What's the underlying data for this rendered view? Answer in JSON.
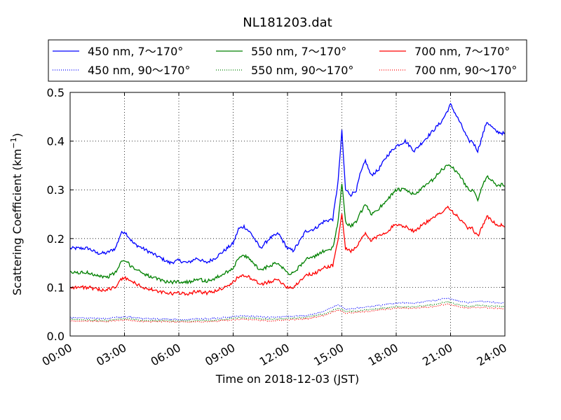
{
  "chart_data": {
    "type": "line",
    "title": "NL181203.dat",
    "xlabel": "Time on 2018-12-03 (JST)",
    "ylabel": "Scattering Coefficient (km",
    "ylabel_sup": "−1",
    "ylabel_close": ")",
    "xlim": [
      "00:00",
      "24:00"
    ],
    "xlim_hours": [
      0,
      24
    ],
    "ylim": [
      0,
      0.5
    ],
    "xticks": [
      "00:00",
      "03:00",
      "06:00",
      "09:00",
      "12:00",
      "15:00",
      "18:00",
      "21:00",
      "24:00"
    ],
    "yticks": [
      "0.0",
      "0.1",
      "0.2",
      "0.3",
      "0.4",
      "0.5"
    ],
    "grid": true,
    "legend_position": "top",
    "series": [
      {
        "name": "450 nm, 7～170°",
        "color": "#0000ff",
        "style": "solid",
        "x_hours": [
          0,
          1,
          1.5,
          2,
          2.5,
          2.8,
          3,
          3.5,
          4,
          4.5,
          5,
          5.5,
          6,
          6.5,
          7,
          7.5,
          8,
          8.5,
          9,
          9.3,
          9.6,
          10,
          10.5,
          11,
          11.5,
          12,
          12.3,
          12.6,
          13,
          13.5,
          14,
          14.5,
          14.8,
          15.0,
          15.2,
          15.5,
          15.8,
          16.0,
          16.3,
          16.6,
          17,
          17.5,
          18,
          18.5,
          19,
          19.5,
          20,
          20.5,
          20.8,
          21,
          21.5,
          22,
          22.2,
          22.5,
          23,
          23.5,
          24
        ],
        "values": [
          0.18,
          0.18,
          0.17,
          0.17,
          0.18,
          0.21,
          0.215,
          0.19,
          0.18,
          0.17,
          0.16,
          0.15,
          0.155,
          0.15,
          0.16,
          0.15,
          0.16,
          0.175,
          0.19,
          0.22,
          0.225,
          0.21,
          0.18,
          0.2,
          0.21,
          0.18,
          0.175,
          0.19,
          0.215,
          0.22,
          0.235,
          0.24,
          0.32,
          0.42,
          0.3,
          0.29,
          0.3,
          0.33,
          0.36,
          0.33,
          0.34,
          0.37,
          0.39,
          0.4,
          0.38,
          0.4,
          0.42,
          0.44,
          0.46,
          0.475,
          0.44,
          0.4,
          0.4,
          0.38,
          0.44,
          0.42,
          0.415
        ]
      },
      {
        "name": "550 nm, 7～170°",
        "color": "#008000",
        "style": "solid",
        "x_hours": [
          0,
          1,
          1.5,
          2,
          2.5,
          2.8,
          3,
          3.5,
          4,
          4.5,
          5,
          5.5,
          6,
          6.5,
          7,
          7.5,
          8,
          8.5,
          9,
          9.3,
          9.6,
          10,
          10.5,
          11,
          11.5,
          12,
          12.3,
          12.6,
          13,
          13.5,
          14,
          14.5,
          14.8,
          15.0,
          15.2,
          15.5,
          15.8,
          16.0,
          16.3,
          16.6,
          17,
          17.5,
          18,
          18.5,
          19,
          19.5,
          20,
          20.5,
          20.8,
          21,
          21.5,
          22,
          22.2,
          22.5,
          23,
          23.5,
          24
        ],
        "values": [
          0.13,
          0.13,
          0.125,
          0.12,
          0.13,
          0.15,
          0.155,
          0.14,
          0.13,
          0.12,
          0.115,
          0.11,
          0.112,
          0.11,
          0.118,
          0.112,
          0.118,
          0.128,
          0.14,
          0.16,
          0.165,
          0.155,
          0.135,
          0.145,
          0.15,
          0.13,
          0.128,
          0.14,
          0.158,
          0.162,
          0.175,
          0.18,
          0.235,
          0.315,
          0.235,
          0.225,
          0.235,
          0.25,
          0.27,
          0.25,
          0.26,
          0.28,
          0.3,
          0.3,
          0.29,
          0.305,
          0.32,
          0.34,
          0.35,
          0.35,
          0.33,
          0.3,
          0.3,
          0.28,
          0.33,
          0.31,
          0.31
        ]
      },
      {
        "name": "700 nm, 7～170°",
        "color": "#ff0000",
        "style": "solid",
        "x_hours": [
          0,
          1,
          1.5,
          2,
          2.5,
          2.8,
          3,
          3.5,
          4,
          4.5,
          5,
          5.5,
          6,
          6.5,
          7,
          7.5,
          8,
          8.5,
          9,
          9.3,
          9.6,
          10,
          10.5,
          11,
          11.5,
          12,
          12.3,
          12.6,
          13,
          13.5,
          14,
          14.5,
          14.8,
          15.0,
          15.2,
          15.5,
          15.8,
          16.0,
          16.3,
          16.6,
          17,
          17.5,
          18,
          18.5,
          19,
          19.5,
          20,
          20.5,
          20.8,
          21,
          21.5,
          22,
          22.2,
          22.5,
          23,
          23.5,
          24
        ],
        "values": [
          0.1,
          0.1,
          0.095,
          0.095,
          0.1,
          0.115,
          0.12,
          0.11,
          0.1,
          0.095,
          0.09,
          0.087,
          0.088,
          0.087,
          0.092,
          0.088,
          0.092,
          0.1,
          0.11,
          0.122,
          0.125,
          0.118,
          0.105,
          0.112,
          0.115,
          0.1,
          0.1,
          0.11,
          0.125,
          0.128,
          0.14,
          0.145,
          0.2,
          0.25,
          0.18,
          0.175,
          0.18,
          0.195,
          0.21,
          0.195,
          0.205,
          0.215,
          0.23,
          0.225,
          0.215,
          0.23,
          0.24,
          0.255,
          0.265,
          0.26,
          0.24,
          0.22,
          0.22,
          0.205,
          0.245,
          0.23,
          0.225
        ]
      },
      {
        "name": "450 nm, 90～170°",
        "color": "#0000ff",
        "style": "dotted",
        "x_hours": [
          0,
          2,
          3,
          4,
          6,
          8,
          9.5,
          11,
          12,
          13,
          14,
          14.8,
          15.2,
          16,
          17,
          18,
          19,
          20,
          20.8,
          21.5,
          22,
          22.5,
          23,
          24
        ],
        "values": [
          0.038,
          0.036,
          0.04,
          0.036,
          0.034,
          0.036,
          0.042,
          0.038,
          0.04,
          0.042,
          0.05,
          0.065,
          0.055,
          0.058,
          0.062,
          0.068,
          0.068,
          0.072,
          0.078,
          0.072,
          0.068,
          0.072,
          0.07,
          0.068
        ]
      },
      {
        "name": "550 nm, 90～170°",
        "color": "#008000",
        "style": "dotted",
        "x_hours": [
          0,
          2,
          3,
          4,
          6,
          8,
          9.5,
          11,
          12,
          13,
          14,
          14.8,
          15.2,
          16,
          17,
          18,
          19,
          20,
          20.8,
          21.5,
          22,
          22.5,
          23,
          24
        ],
        "values": [
          0.034,
          0.032,
          0.036,
          0.032,
          0.031,
          0.032,
          0.038,
          0.034,
          0.036,
          0.038,
          0.045,
          0.058,
          0.05,
          0.052,
          0.056,
          0.06,
          0.06,
          0.064,
          0.07,
          0.064,
          0.06,
          0.063,
          0.062,
          0.06
        ]
      },
      {
        "name": "700 nm, 90～170°",
        "color": "#ff0000",
        "style": "dotted",
        "x_hours": [
          0,
          2,
          3,
          4,
          6,
          8,
          9.5,
          11,
          12,
          13,
          14,
          14.8,
          15.2,
          16,
          17,
          18,
          19,
          20,
          20.8,
          21.5,
          22,
          22.5,
          23,
          24
        ],
        "values": [
          0.031,
          0.03,
          0.033,
          0.03,
          0.029,
          0.03,
          0.035,
          0.031,
          0.033,
          0.035,
          0.042,
          0.054,
          0.047,
          0.049,
          0.053,
          0.057,
          0.057,
          0.06,
          0.066,
          0.06,
          0.057,
          0.059,
          0.058,
          0.056
        ]
      }
    ]
  }
}
